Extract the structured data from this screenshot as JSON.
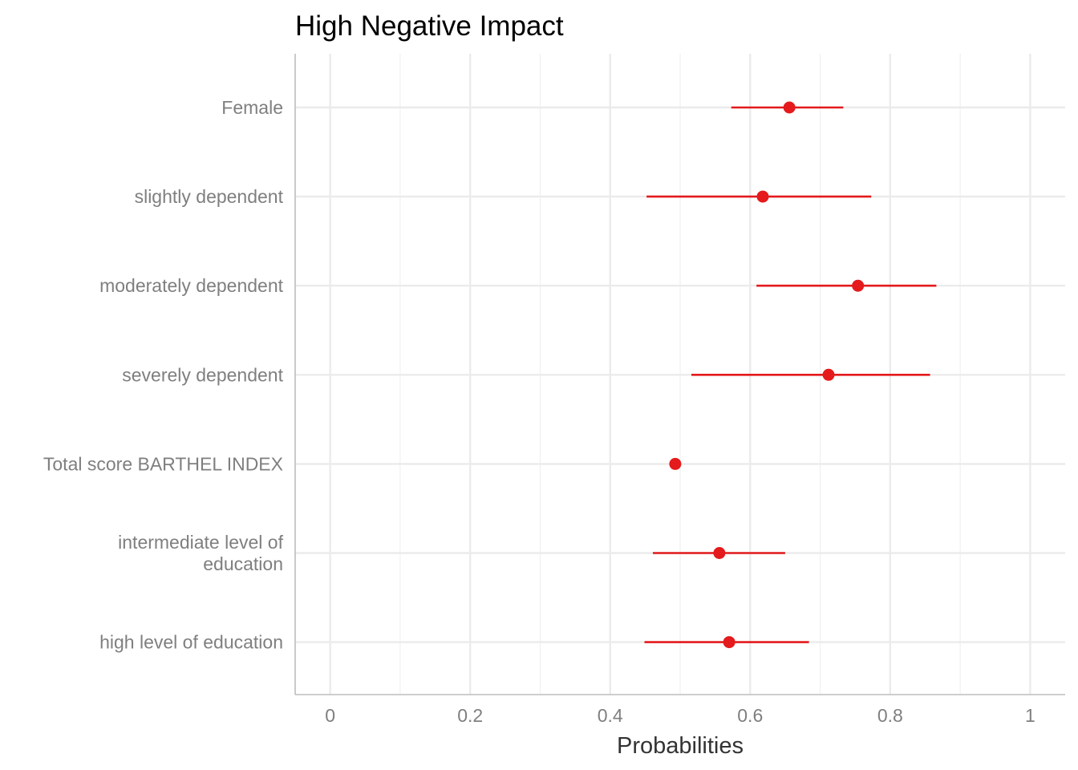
{
  "chart_data": {
    "type": "scatter",
    "title": "High Negative Impact",
    "xlabel": "Probabilities",
    "ylabel": "",
    "xlim": [
      -0.05,
      1.05
    ],
    "xticks": [
      0,
      0.2,
      0.4,
      0.6,
      0.8,
      1
    ],
    "xtick_labels": [
      "0",
      "0.2",
      "0.4",
      "0.6",
      "0.8",
      "1"
    ],
    "grid": true,
    "point_color": "#e41a1c",
    "rows": [
      {
        "label": "Female",
        "lines": [
          "Female"
        ],
        "estimate": 0.656,
        "lower": 0.573,
        "upper": 0.733
      },
      {
        "label": "slightly dependent",
        "lines": [
          "slightly dependent"
        ],
        "estimate": 0.618,
        "lower": 0.452,
        "upper": 0.773
      },
      {
        "label": "moderately dependent",
        "lines": [
          "moderately dependent"
        ],
        "estimate": 0.754,
        "lower": 0.609,
        "upper": 0.866
      },
      {
        "label": "severely dependent",
        "lines": [
          "severely dependent"
        ],
        "estimate": 0.712,
        "lower": 0.516,
        "upper": 0.857
      },
      {
        "label": "Total score BARTHEL INDEX",
        "lines": [
          "Total score BARTHEL INDEX"
        ],
        "estimate": 0.493,
        "lower": 0.489,
        "upper": 0.497
      },
      {
        "label": "intermediate level of education",
        "lines": [
          "intermediate level of",
          "education"
        ],
        "estimate": 0.556,
        "lower": 0.461,
        "upper": 0.65
      },
      {
        "label": "high level of education",
        "lines": [
          "high level of education"
        ],
        "estimate": 0.57,
        "lower": 0.449,
        "upper": 0.684
      }
    ]
  }
}
